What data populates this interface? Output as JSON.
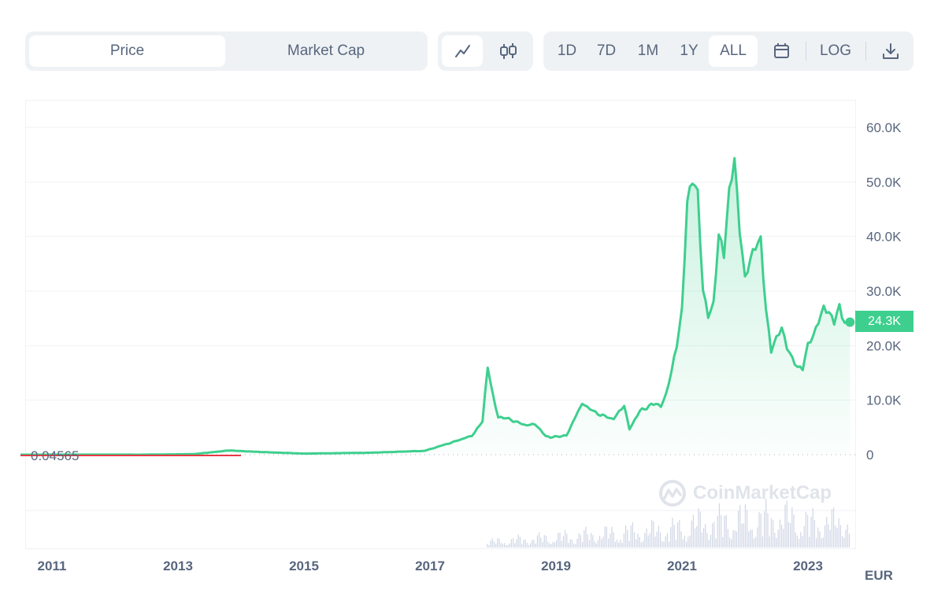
{
  "toolbar": {
    "type_tabs": [
      {
        "label": "Price",
        "active": true
      },
      {
        "label": "Market Cap",
        "active": false
      }
    ],
    "chart_styles": [
      {
        "icon": "line-chart-icon",
        "active": true
      },
      {
        "icon": "candlestick-icon",
        "active": false
      }
    ],
    "ranges": [
      "1D",
      "7D",
      "1M",
      "1Y",
      "ALL"
    ],
    "active_range": "ALL",
    "calendar_icon": "calendar-icon",
    "log_label": "LOG",
    "download_icon": "download-icon"
  },
  "price_badge": "24.3K",
  "min_label": "0.04565",
  "currency": "EUR",
  "watermark": "CoinMarketCap",
  "colors": {
    "line": "#3ecf8e",
    "line_start": "#ea3943",
    "grid": "#eff2f5",
    "volume": "#cfd6e4"
  },
  "chart_data": {
    "type": "area",
    "y_ticks": [
      "60.0K",
      "50.0K",
      "40.0K",
      "30.0K",
      "20.0K",
      "10.0K",
      "0"
    ],
    "ylim": [
      0,
      60000
    ],
    "x_ticks": [
      "2011",
      "2013",
      "2015",
      "2017",
      "2019",
      "2021",
      "2023"
    ],
    "xlim": [
      "2010-07",
      "2023-10"
    ],
    "grid": true,
    "series": [
      {
        "x": [
          "2010-07",
          "2011-06",
          "2012-06",
          "2013-04",
          "2013-11",
          "2013-12",
          "2014-06",
          "2015-01",
          "2016-01",
          "2016-12",
          "2017-06",
          "2017-09",
          "2017-11",
          "2017-12",
          "2018-01",
          "2018-02",
          "2018-04",
          "2018-07",
          "2018-09",
          "2018-11",
          "2018-12",
          "2019-03",
          "2019-06",
          "2019-07",
          "2019-09",
          "2019-12",
          "2020-02",
          "2020-03",
          "2020-05",
          "2020-08",
          "2020-09",
          "2020-10",
          "2020-11",
          "2020-12",
          "2021-01",
          "2021-02",
          "2021-03",
          "2021-04",
          "2021-05",
          "2021-06",
          "2021-07",
          "2021-08",
          "2021-09",
          "2021-10",
          "2021-11",
          "2021-12",
          "2022-01",
          "2022-03",
          "2022-04",
          "2022-05",
          "2022-06",
          "2022-08",
          "2022-09",
          "2022-11",
          "2022-12",
          "2023-01",
          "2023-02",
          "2023-03",
          "2023-04",
          "2023-06",
          "2023-07",
          "2023-08",
          "2023-09"
        ],
        "values": [
          0.04565,
          15,
          6,
          100,
          800,
          700,
          450,
          200,
          350,
          700,
          2500,
          3500,
          6000,
          16000,
          11000,
          7000,
          6500,
          5500,
          5500,
          3500,
          3200,
          3500,
          9500,
          8500,
          7500,
          6500,
          9000,
          4800,
          8000,
          9500,
          9000,
          11000,
          15000,
          20000,
          27000,
          47000,
          50000,
          47000,
          30000,
          26000,
          28000,
          40000,
          36000,
          48000,
          55000,
          42000,
          32000,
          38000,
          40000,
          27000,
          19000,
          23000,
          20000,
          16000,
          15500,
          20000,
          22000,
          25000,
          27000,
          24000,
          27500,
          24500,
          24300
        ]
      }
    ],
    "current_value": "24.3K"
  }
}
